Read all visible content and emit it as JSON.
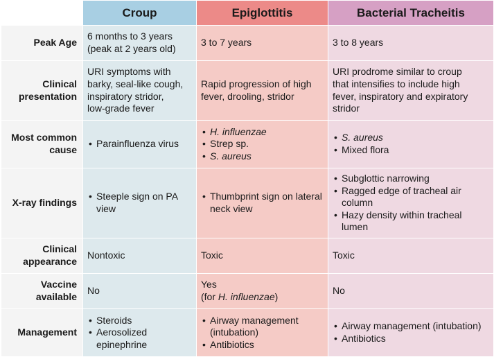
{
  "headers": {
    "croup": "Croup",
    "epiglottitis": "Epiglottitis",
    "bacterial": "Bacterial Tracheitis"
  },
  "rows": {
    "peak_age": {
      "label": "Peak Age",
      "croup": [
        "6 months to 3 years",
        "(peak at 2 years old)"
      ],
      "epiglottitis": "3 to 7 years",
      "bacterial": "3 to 8 years"
    },
    "clinical_presentation": {
      "label": [
        "Clinical",
        "presentation"
      ],
      "croup": [
        "URI symptoms with",
        "barky, seal-like cough,",
        "inspiratory stridor,",
        "low-grade fever"
      ],
      "epiglottitis": [
        "Rapid progression of high",
        "fever, drooling, stridor"
      ],
      "bacterial": [
        "URI prodrome similar to croup",
        "that intensifies to include high",
        "fever, inspiratory and expiratory",
        "stridor"
      ]
    },
    "most_common_cause": {
      "label": [
        "Most common",
        "cause"
      ],
      "croup": [
        "Parainfluenza virus"
      ],
      "epiglottitis": [
        "H. influenzae",
        "Strep sp.",
        "S. aureus"
      ],
      "bacterial": [
        "S. aureus",
        "Mixed flora"
      ]
    },
    "xray_findings": {
      "label": "X-ray findings",
      "croup": [
        "Steeple sign on PA view"
      ],
      "epiglottitis": [
        "Thumbprint sign on lateral neck view"
      ],
      "bacterial": [
        "Subglottic narrowing",
        "Ragged edge of tracheal air column",
        "Hazy density within tracheal lumen"
      ]
    },
    "clinical_appearance": {
      "label": [
        "Clinical",
        "appearance"
      ],
      "croup": "Nontoxic",
      "epiglottitis": "Toxic",
      "bacterial": "Toxic"
    },
    "vaccine_available": {
      "label": [
        "Vaccine",
        "available"
      ],
      "croup": "No",
      "epiglottitis": {
        "line1": "Yes",
        "prefix": "(for ",
        "italic": "H. influenzae",
        "suffix": ")"
      },
      "bacterial": "No"
    },
    "management": {
      "label": "Management",
      "croup": [
        "Steroids",
        "Aerosolized epinephrine"
      ],
      "epiglottitis": [
        "Airway management (intubation)",
        "Antibiotics"
      ],
      "bacterial": [
        "Airway management (intubation)",
        "Antibiotics"
      ]
    }
  }
}
